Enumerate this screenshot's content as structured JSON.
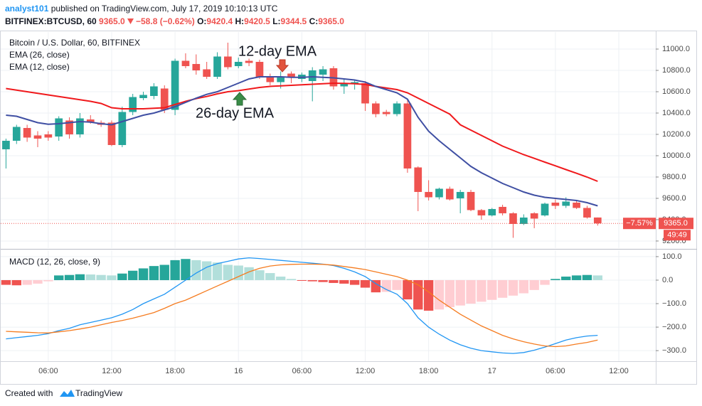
{
  "header": {
    "author": "analyst101",
    "published": "published on TradingView.com, July 17, 2019 10:10:13 UTC",
    "symbol": "BITFINEX:BTCUSD, 60",
    "price": "9365.0",
    "change": "−58.8 (−0.62%)",
    "ohlc": [
      {
        "label": "O:",
        "value": "9420.4"
      },
      {
        "label": "H:",
        "value": "9420.5"
      },
      {
        "label": "L:",
        "value": "9344.5"
      },
      {
        "label": "C:",
        "value": "9365.0"
      }
    ]
  },
  "chart_data": [
    {
      "type": "candlestick",
      "title": "Bitcoin / U.S. Dollar, 60, BITFINEX",
      "open": [
        10060,
        10140,
        10260,
        10190,
        10200,
        10180,
        10330,
        10200,
        10340,
        10310,
        10310,
        10100,
        10410,
        10540,
        10560,
        10630,
        10430,
        10890,
        10860,
        10810,
        10740,
        10930,
        10840,
        10890,
        10880,
        10740,
        10690,
        10770,
        10720,
        10700,
        10760,
        10820,
        10650,
        10670,
        10680,
        10490,
        10410,
        10390,
        10490,
        9890,
        9660,
        9610,
        9690,
        9600,
        9660,
        9490,
        9440,
        9520,
        9460,
        9360,
        9460,
        9440,
        9560,
        9530,
        9560,
        9510,
        9420.4,
        null,
        null,
        null,
        null,
        null
      ],
      "high": [
        10160,
        10290,
        10290,
        10230,
        10230,
        10370,
        10360,
        10400,
        10380,
        10330,
        10330,
        10460,
        10580,
        10600,
        10680,
        10660,
        10910,
        10960,
        10950,
        10880,
        10970,
        11060,
        10920,
        10910,
        10900,
        10770,
        10790,
        10790,
        10780,
        10830,
        10840,
        10840,
        10720,
        10710,
        10700,
        10510,
        10430,
        10510,
        10520,
        9900,
        9770,
        9700,
        9710,
        9680,
        9680,
        9500,
        9510,
        9540,
        9470,
        9450,
        9470,
        9560,
        9590,
        9610,
        9580,
        9530,
        9420.5,
        null,
        null,
        null,
        null,
        null
      ],
      "low": [
        9880,
        10110,
        10130,
        10080,
        10140,
        10140,
        10160,
        10170,
        10300,
        10270,
        10090,
        10080,
        10380,
        10520,
        10530,
        10400,
        10380,
        10820,
        10760,
        10720,
        10720,
        10810,
        10820,
        10840,
        10720,
        10660,
        10630,
        10680,
        10690,
        10510,
        10700,
        10620,
        10580,
        10620,
        10420,
        10360,
        10370,
        10370,
        9840,
        9480,
        9580,
        9590,
        9580,
        9460,
        9480,
        9400,
        9430,
        9440,
        9230,
        9350,
        9320,
        9430,
        9500,
        9510,
        9500,
        9410,
        9344.5,
        null,
        null,
        null,
        null,
        null
      ],
      "close": [
        10140,
        10270,
        10170,
        10160,
        10170,
        10350,
        10200,
        10350,
        10310,
        10290,
        10100,
        10410,
        10550,
        10570,
        10650,
        10430,
        10890,
        10840,
        10800,
        10740,
        10930,
        10830,
        10880,
        10870,
        10740,
        10690,
        10740,
        10730,
        10760,
        10800,
        10810,
        10650,
        10680,
        10690,
        10490,
        10390,
        10390,
        10490,
        9880,
        9660,
        9610,
        9690,
        9590,
        9660,
        9490,
        9440,
        9500,
        9460,
        9360,
        9420,
        9410,
        9550,
        9530,
        9570,
        9510,
        9420,
        9365.0,
        null,
        null,
        null,
        null,
        null
      ],
      "up_color": "#26a69a",
      "down_color": "#ef5350",
      "series": [
        {
          "name": "EMA (26, close)",
          "color": "#f0191c",
          "values": [
            10630,
            10615,
            10600,
            10585,
            10570,
            10555,
            10540,
            10525,
            10510,
            10490,
            10450,
            10440,
            10440,
            10440,
            10445,
            10450,
            10480,
            10510,
            10535,
            10555,
            10580,
            10600,
            10610,
            10625,
            10640,
            10650,
            10655,
            10660,
            10665,
            10670,
            10675,
            10680,
            10678,
            10675,
            10668,
            10650,
            10635,
            10620,
            10590,
            10540,
            10490,
            10440,
            10390,
            10290,
            10240,
            10190,
            10140,
            10090,
            10050,
            10010,
            9975,
            9940,
            9905,
            9870,
            9835,
            9800,
            9760,
            null,
            null,
            null,
            null,
            null
          ]
        },
        {
          "name": "EMA (12, close)",
          "color": "#3f4fa3",
          "values": [
            10380,
            10370,
            10340,
            10310,
            10295,
            10300,
            10310,
            10320,
            10315,
            10300,
            10290,
            10320,
            10350,
            10380,
            10400,
            10430,
            10460,
            10500,
            10540,
            10575,
            10600,
            10640,
            10680,
            10720,
            10740,
            10740,
            10740,
            10735,
            10735,
            10740,
            10735,
            10730,
            10720,
            10710,
            10690,
            10650,
            10620,
            10590,
            10530,
            10360,
            10230,
            10140,
            10060,
            9980,
            9900,
            9840,
            9790,
            9740,
            9700,
            9660,
            9630,
            9610,
            9600,
            9590,
            9580,
            9560,
            9530,
            null,
            null,
            null,
            null,
            null
          ]
        }
      ],
      "ylim": [
        9133,
        11160
      ],
      "yticks": [
        {
          "value": 9200,
          "label": "9200.0"
        },
        {
          "value": 9400,
          "label": "9400.0"
        },
        {
          "value": 9600,
          "label": "9600.0"
        },
        {
          "value": 9800,
          "label": "9800.0"
        },
        {
          "value": 10000,
          "label": "10000.0"
        },
        {
          "value": 10200,
          "label": "10200.0"
        },
        {
          "value": 10400,
          "label": "10400.0"
        },
        {
          "value": 10600,
          "label": "10600.0"
        },
        {
          "value": 10800,
          "label": "10800.0"
        },
        {
          "value": 11000,
          "label": "11000.0"
        }
      ],
      "grid": true,
      "annotations": [
        {
          "text": "12-day EMA"
        },
        {
          "text": "26-day EMA"
        }
      ],
      "last_change": "−7.57%",
      "countdown": "49:49"
    },
    {
      "type": "macd",
      "title": "MACD (12, 26, close, 9)",
      "categories": [
        null,
        null,
        null,
        null,
        "06:00",
        null,
        null,
        null,
        null,
        null,
        "12:00",
        null,
        null,
        null,
        null,
        null,
        "18:00",
        null,
        null,
        null,
        null,
        null,
        "16",
        null,
        null,
        null,
        null,
        null,
        "06:00",
        null,
        null,
        null,
        null,
        null,
        "12:00",
        null,
        null,
        null,
        null,
        null,
        "18:00",
        null,
        null,
        null,
        null,
        null,
        "17",
        null,
        null,
        null,
        null,
        null,
        "06:00",
        null,
        null,
        null,
        null,
        null,
        "12:00",
        null,
        null,
        null
      ],
      "histogram": {
        "values": [
          -20,
          -22,
          -20,
          -15,
          -5,
          20,
          22,
          25,
          24,
          22,
          20,
          28,
          40,
          50,
          60,
          65,
          85,
          90,
          85,
          80,
          75,
          65,
          62,
          55,
          42,
          30,
          15,
          5,
          -3,
          -5,
          -8,
          -12,
          -15,
          -20,
          -32,
          -52,
          -50,
          -42,
          -82,
          -125,
          -130,
          -125,
          -115,
          -108,
          -100,
          -92,
          -84,
          -75,
          -66,
          -56,
          -42,
          -20,
          5,
          15,
          20,
          22,
          20,
          null,
          null,
          null,
          null,
          null
        ],
        "colors": {
          "rising_above": "#26a69a",
          "falling_above": "#b2dfdb",
          "falling_below": "#ef5350",
          "rising_below": "#ffcdd2"
        }
      },
      "series": [
        {
          "color": "#2196f3",
          "values": [
            -250,
            -245,
            -240,
            -235,
            -228,
            -215,
            -205,
            -190,
            -180,
            -170,
            -160,
            -145,
            -125,
            -100,
            -80,
            -60,
            -30,
            0,
            30,
            55,
            70,
            80,
            90,
            95,
            92,
            88,
            84,
            80,
            76,
            72,
            68,
            62,
            50,
            35,
            15,
            -15,
            -40,
            -60,
            -100,
            -160,
            -200,
            -230,
            -255,
            -275,
            -290,
            -300,
            -305,
            -310,
            -312,
            -308,
            -298,
            -285,
            -270,
            -255,
            -245,
            -238,
            -235,
            null,
            null,
            null,
            null,
            null
          ]
        },
        {
          "color": "#f57c20",
          "values": [
            -218,
            -220,
            -222,
            -224,
            -225,
            -220,
            -215,
            -208,
            -200,
            -190,
            -180,
            -172,
            -162,
            -150,
            -138,
            -120,
            -100,
            -85,
            -65,
            -45,
            -25,
            -5,
            15,
            35,
            50,
            60,
            65,
            67,
            68,
            68,
            67,
            64,
            58,
            52,
            45,
            35,
            25,
            15,
            0,
            -20,
            -50,
            -85,
            -115,
            -145,
            -170,
            -195,
            -215,
            -235,
            -250,
            -262,
            -272,
            -280,
            -283,
            -280,
            -272,
            -265,
            -255,
            null,
            null,
            null,
            null,
            null
          ]
        }
      ],
      "ylim": [
        -345,
        127
      ],
      "yticks": [
        {
          "value": -300,
          "label": "−300.0"
        },
        {
          "value": -200,
          "label": "−200.0"
        },
        {
          "value": -100,
          "label": "−100.0"
        },
        {
          "value": 0,
          "label": "0.0"
        },
        {
          "value": 100,
          "label": "100.0"
        }
      ],
      "grid": true
    }
  ],
  "footer": {
    "text": "Created with",
    "brand": "TradingView"
  }
}
